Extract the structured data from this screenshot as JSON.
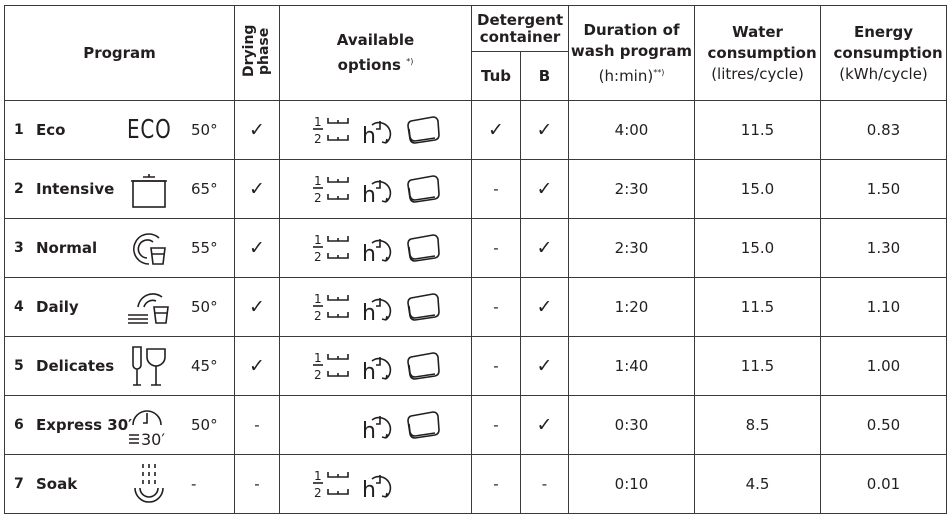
{
  "header": {
    "program": "Program",
    "drying_phase": "Drying phase",
    "available_options": "Available options",
    "available_options_note": "*)",
    "detergent_container": "Detergent container",
    "tub": "Tub",
    "b": "B",
    "duration_title": "Duration of wash program",
    "duration_unit": "(h:min)",
    "duration_note": "**)",
    "water_title": "Water consumption",
    "water_unit": "(litres/cycle)",
    "energy_title": "Energy consumption",
    "energy_unit": "(kWh/cycle)"
  },
  "icons": {
    "check": "✓"
  },
  "rows": [
    {
      "num": "1",
      "name": "Eco",
      "icon": "eco-icon",
      "icon_text": "ECO",
      "temp": "50°",
      "drying": "✓",
      "options": [
        "half-load-icon",
        "delay-start-icon",
        "tablet-icon"
      ],
      "tub": "✓",
      "b": "✓",
      "duration": "4:00",
      "water": "11.5",
      "energy": "0.83"
    },
    {
      "num": "2",
      "name": "Intensive",
      "icon": "pot-icon",
      "temp": "65°",
      "drying": "✓",
      "options": [
        "half-load-icon",
        "delay-start-icon",
        "tablet-icon"
      ],
      "tub": "-",
      "b": "✓",
      "duration": "2:30",
      "water": "15.0",
      "energy": "1.50"
    },
    {
      "num": "3",
      "name": "Normal",
      "icon": "plate-glass-icon",
      "temp": "55°",
      "drying": "✓",
      "options": [
        "half-load-icon",
        "delay-start-icon",
        "tablet-icon"
      ],
      "tub": "-",
      "b": "✓",
      "duration": "2:30",
      "water": "15.0",
      "energy": "1.30"
    },
    {
      "num": "4",
      "name": "Daily",
      "icon": "daily-plate-glass-icon",
      "temp": "50°",
      "drying": "✓",
      "options": [
        "half-load-icon",
        "delay-start-icon",
        "tablet-icon"
      ],
      "tub": "-",
      "b": "✓",
      "duration": "1:20",
      "water": "11.5",
      "energy": "1.10"
    },
    {
      "num": "5",
      "name": "Delicates",
      "icon": "wine-glasses-icon",
      "temp": "45°",
      "drying": "✓",
      "options": [
        "half-load-icon",
        "delay-start-icon",
        "tablet-icon"
      ],
      "tub": "-",
      "b": "✓",
      "duration": "1:40",
      "water": "11.5",
      "energy": "1.00"
    },
    {
      "num": "6",
      "name": "Express 30′",
      "icon": "express-clock-icon",
      "icon_text": "30′",
      "temp": "50°",
      "drying": "-",
      "options": [
        "",
        "delay-start-icon",
        "tablet-icon"
      ],
      "tub": "-",
      "b": "✓",
      "duration": "0:30",
      "water": "8.5",
      "energy": "0.50"
    },
    {
      "num": "7",
      "name": "Soak",
      "icon": "soak-icon",
      "temp": "-",
      "drying": "-",
      "options": [
        "half-load-icon",
        "delay-start-icon",
        ""
      ],
      "tub": "-",
      "b": "-",
      "duration": "0:10",
      "water": "4.5",
      "energy": "0.01"
    }
  ]
}
